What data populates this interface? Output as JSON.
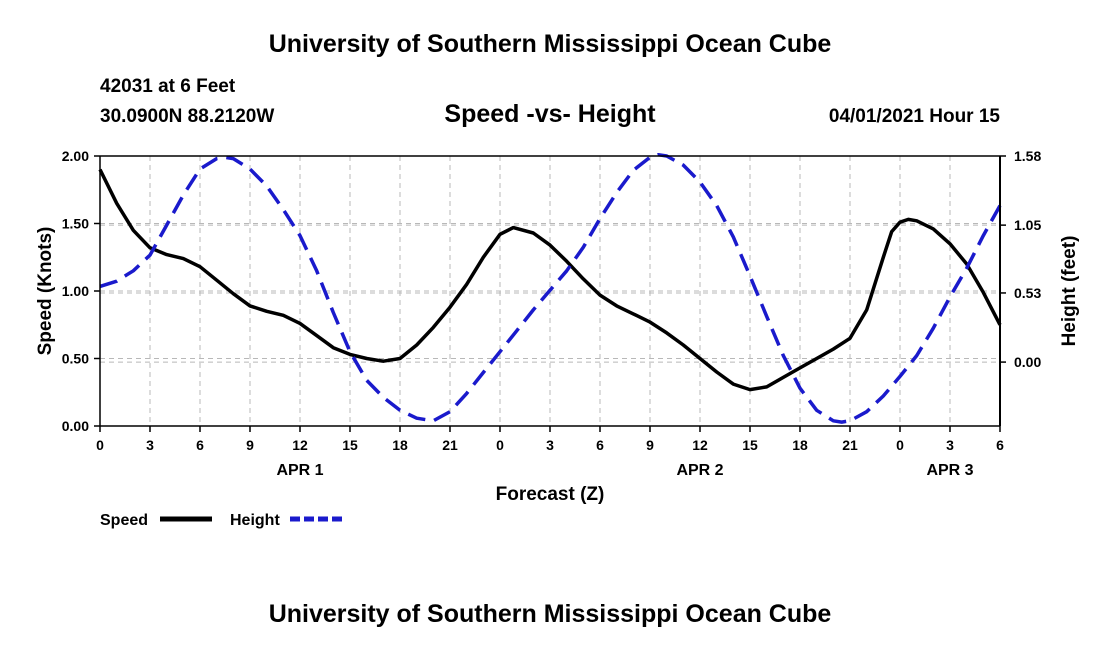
{
  "header": {
    "title": "University of Southern Mississippi Ocean Cube",
    "station": "42031 at 6 Feet",
    "coords": "30.0900N  88.2120W",
    "subtitle": "Speed -vs- Height",
    "datetime": "04/01/2021 Hour 15"
  },
  "footer": {
    "title": "University of Southern Mississippi Ocean Cube"
  },
  "chart_data": {
    "type": "line",
    "title": "Speed -vs- Height",
    "xlabel": "Forecast (Z)",
    "ylabel": "Speed (Knots)",
    "y2label": "Height (feet)",
    "grid": true,
    "xlim": [
      0,
      54
    ],
    "ylim": [
      0,
      2
    ],
    "y2lim": [
      -0.49,
      1.58
    ],
    "x_ticks": [
      0,
      3,
      6,
      9,
      12,
      15,
      18,
      21,
      24,
      27,
      30,
      33,
      36,
      39,
      42,
      45,
      48,
      51,
      54
    ],
    "x_tick_labels": [
      "0",
      "3",
      "6",
      "9",
      "12",
      "15",
      "18",
      "21",
      "0",
      "3",
      "6",
      "9",
      "12",
      "15",
      "18",
      "21",
      "0",
      "3",
      "6"
    ],
    "day_labels": [
      {
        "x": 12,
        "label": "APR 1"
      },
      {
        "x": 36,
        "label": "APR 2"
      },
      {
        "x": 51,
        "label": "APR 3"
      }
    ],
    "y_ticks": [
      0,
      0.5,
      1,
      1.5,
      2
    ],
    "y_tick_labels": [
      "0.00",
      "0.50",
      "1.00",
      "1.50",
      "2.00"
    ],
    "y2_ticks": [
      0,
      0.53,
      1.05,
      1.58
    ],
    "y2_tick_labels": [
      "0.00",
      "0.53",
      "1.05",
      "1.58"
    ],
    "legend_position": "bottom-left",
    "series": [
      {
        "name": "Speed",
        "axis": "left",
        "color": "#000000",
        "dash": "solid",
        "x": [
          0,
          1,
          2,
          3,
          4,
          5,
          6,
          7,
          8,
          9,
          10,
          11,
          12,
          13,
          14,
          15,
          16,
          17,
          18,
          19,
          20,
          21,
          22,
          23,
          24,
          24.8,
          26,
          27,
          28,
          29,
          30,
          31,
          32,
          33,
          34,
          35,
          36,
          37,
          38,
          39,
          40,
          41,
          42,
          43,
          44,
          45,
          46,
          47,
          47.5,
          48,
          48.5,
          49,
          50,
          51,
          52,
          53,
          54
        ],
        "y": [
          1.9,
          1.65,
          1.45,
          1.32,
          1.27,
          1.24,
          1.18,
          1.08,
          0.98,
          0.89,
          0.85,
          0.82,
          0.76,
          0.67,
          0.58,
          0.53,
          0.5,
          0.48,
          0.5,
          0.6,
          0.73,
          0.88,
          1.05,
          1.25,
          1.42,
          1.47,
          1.43,
          1.34,
          1.22,
          1.09,
          0.97,
          0.89,
          0.83,
          0.77,
          0.69,
          0.6,
          0.5,
          0.4,
          0.31,
          0.27,
          0.29,
          0.36,
          0.43,
          0.5,
          0.57,
          0.65,
          0.86,
          1.25,
          1.44,
          1.51,
          1.53,
          1.52,
          1.46,
          1.35,
          1.2,
          0.99,
          0.75
        ]
      },
      {
        "name": "Height",
        "axis": "right",
        "color": "#1a1acc",
        "dash": "dashed",
        "x": [
          0,
          1,
          2,
          3,
          4,
          5,
          6,
          7,
          7.5,
          8,
          9,
          10,
          11,
          12,
          13,
          14,
          15,
          16,
          17,
          18,
          19,
          20,
          21,
          22,
          23,
          24,
          25,
          26,
          27,
          28,
          29,
          30,
          31,
          32,
          33,
          33.5,
          34,
          35,
          36,
          37,
          38,
          39,
          40,
          41,
          42,
          43,
          44,
          44.5,
          45,
          46,
          47,
          48,
          49,
          50,
          51,
          52,
          53,
          54
        ],
        "y": [
          0.58,
          0.62,
          0.7,
          0.82,
          1.05,
          1.28,
          1.48,
          1.56,
          1.57,
          1.56,
          1.48,
          1.35,
          1.17,
          0.97,
          0.7,
          0.38,
          0.08,
          -0.14,
          -0.27,
          -0.37,
          -0.43,
          -0.45,
          -0.38,
          -0.24,
          -0.08,
          0.08,
          0.24,
          0.4,
          0.55,
          0.7,
          0.88,
          1.1,
          1.3,
          1.47,
          1.57,
          1.59,
          1.58,
          1.51,
          1.38,
          1.2,
          0.96,
          0.66,
          0.35,
          0.05,
          -0.2,
          -0.37,
          -0.45,
          -0.46,
          -0.45,
          -0.38,
          -0.26,
          -0.11,
          0.05,
          0.26,
          0.5,
          0.72,
          0.97,
          1.2
        ]
      }
    ]
  }
}
